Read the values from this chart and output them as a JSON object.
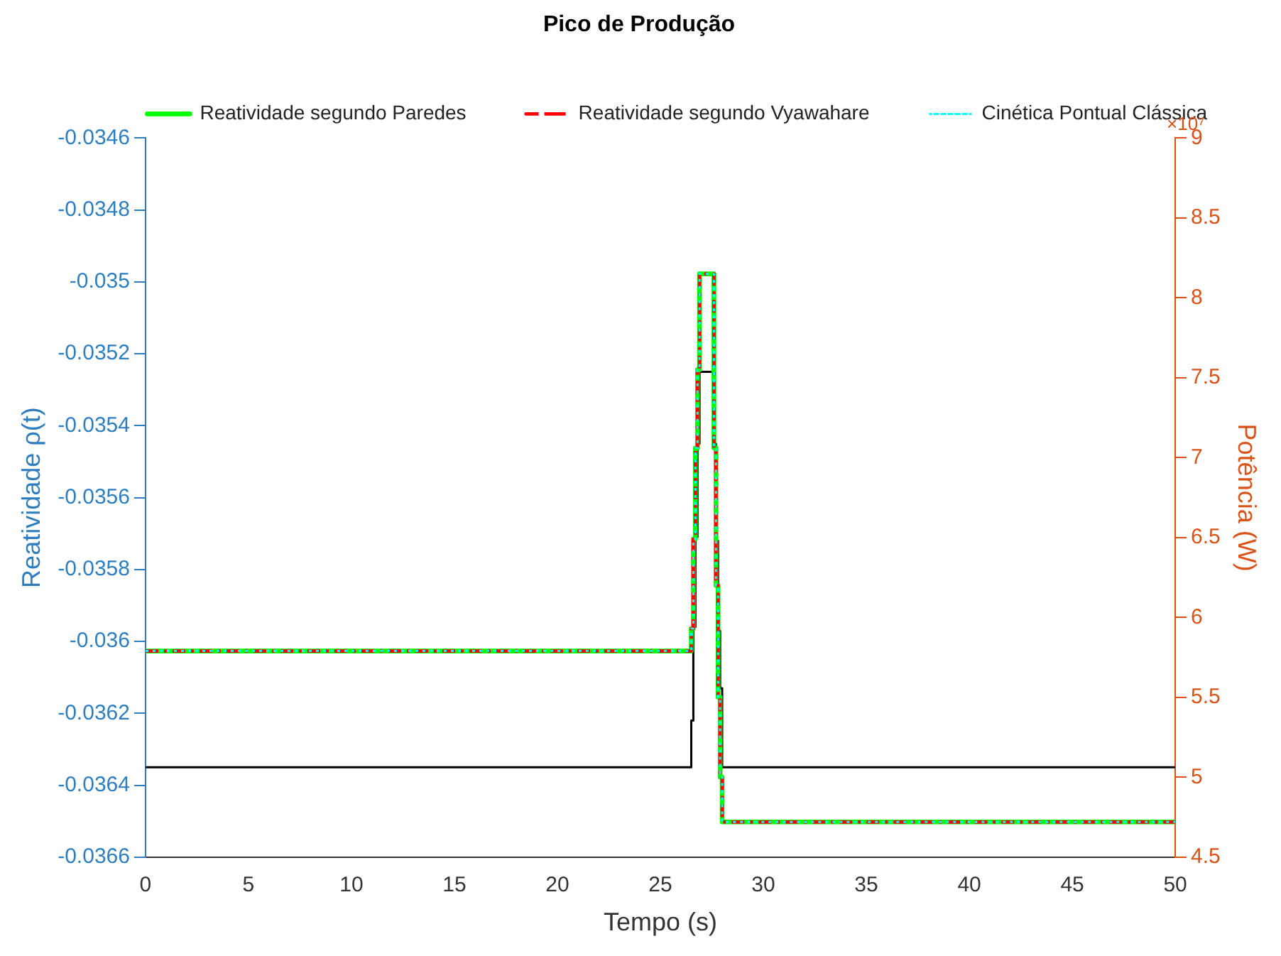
{
  "chart_data": {
    "type": "step",
    "title": "Pico de Produção",
    "xlabel": "Tempo (s)",
    "ylabel": "Reatividade ρ(t)",
    "y2label": "Potência (W)",
    "annotations": [
      "×10⁷"
    ],
    "xlim": [
      0,
      50
    ],
    "xticks": [
      0,
      5,
      10,
      15,
      20,
      25,
      30,
      35,
      40,
      45,
      50
    ],
    "ylim": [
      -0.0366,
      -0.0346
    ],
    "yticks": [
      -0.0366,
      -0.0364,
      -0.0362,
      -0.036,
      -0.0358,
      -0.0356,
      -0.0354,
      -0.0352,
      -0.035,
      -0.0348,
      -0.0346
    ],
    "y2lim": [
      4.5,
      9
    ],
    "y2ticks": [
      4.5,
      5,
      5.5,
      6,
      6.5,
      7,
      7.5,
      8,
      8.5,
      9
    ],
    "grid": false,
    "legend": "top right",
    "series": [
      {
        "color": "#000000",
        "line_style": "solid",
        "x": [
          0,
          26.5,
          26.6,
          26.7,
          26.8,
          26.9,
          27.6,
          27.7,
          27.8,
          27.9,
          28.0,
          50
        ],
        "values": [
          -0.03635,
          -0.03622,
          -0.03596,
          -0.03571,
          -0.03545,
          -0.03525,
          -0.03545,
          -0.03572,
          -0.03597,
          -0.03613,
          -0.03635,
          -0.03635
        ]
      },
      {
        "name": "Reatividade segundo Paredes",
        "axis": "y2",
        "color": "#00ff00",
        "line_style": "solid",
        "x": [
          0,
          26.5,
          26.6,
          26.7,
          26.8,
          26.9,
          27.6,
          27.7,
          27.8,
          27.9,
          28.0,
          50
        ],
        "values": [
          5.79,
          5.93,
          6.49,
          7.06,
          7.55,
          8.15,
          7.06,
          6.2,
          5.5,
          5.0,
          4.72,
          4.72
        ]
      },
      {
        "name": "Reatividade segundo Vyawahare",
        "axis": "y2",
        "color": "#ff0000",
        "line_style": "dashed",
        "x": [
          0,
          26.5,
          26.6,
          26.7,
          26.8,
          26.9,
          27.6,
          27.7,
          27.8,
          27.9,
          28.0,
          50
        ],
        "values": [
          5.79,
          5.93,
          6.49,
          7.06,
          7.55,
          8.15,
          7.06,
          6.2,
          5.5,
          5.0,
          4.72,
          4.72
        ]
      },
      {
        "name": "Cinética Pontual Clássica",
        "axis": "y2",
        "color": "#00ffff",
        "line_style": "dotted",
        "x": [
          0,
          26.5,
          26.6,
          26.7,
          26.8,
          26.9,
          27.6,
          27.7,
          27.8,
          27.9,
          28.0,
          50
        ],
        "values": [
          5.79,
          5.93,
          6.49,
          7.06,
          7.55,
          8.15,
          7.06,
          6.2,
          5.5,
          5.0,
          4.72,
          4.72
        ]
      }
    ]
  }
}
